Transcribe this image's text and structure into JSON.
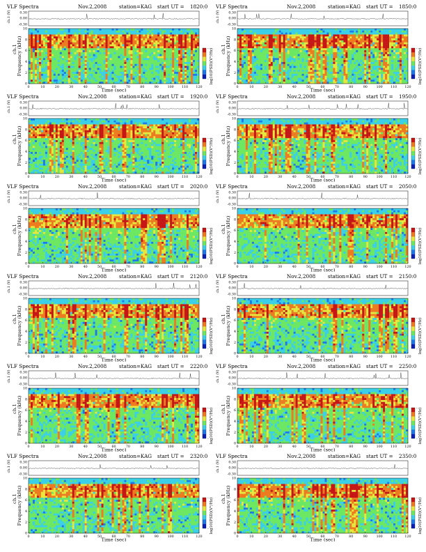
{
  "figure": {
    "header_title": "VLF Spectra",
    "header_date": "Nov.2,2008",
    "header_station": "station=KAG",
    "header_start_prefix": "start  UT  =",
    "time_axis_label": "Time  (sec)",
    "freq_axis_label": "Frequency  (kHz)",
    "channel_label": "ch.1",
    "waveform_axis_label": "ch.1 (V)",
    "colorbar_label": "log10(PSD)(V²/Hz)"
  },
  "chart_data": [
    {
      "type": "heatmap",
      "start_ut": "1820:0",
      "x": {
        "label": "Time (sec)",
        "range": [
          0,
          120
        ],
        "ticks": [
          0,
          10,
          20,
          30,
          40,
          50,
          60,
          70,
          80,
          90,
          100,
          110,
          120
        ]
      },
      "y": {
        "label": "Frequency (kHz)",
        "range": [
          0,
          10
        ],
        "ticks": [
          0,
          2,
          4,
          6,
          8,
          10
        ]
      },
      "waveform": {
        "label": "ch.1 (V)",
        "ticks": [
          "0.30",
          "0.00",
          "-0.30"
        ]
      },
      "colorbar": {
        "label": "log10(PSD)(V²/Hz)",
        "tick_top": "-",
        "tick_bottom": "-"
      }
    },
    {
      "type": "heatmap",
      "start_ut": "1850:0",
      "x": {
        "label": "Time (sec)",
        "range": [
          0,
          120
        ],
        "ticks": [
          0,
          10,
          20,
          30,
          40,
          50,
          60,
          70,
          80,
          90,
          100,
          110,
          120
        ]
      },
      "y": {
        "label": "Frequency (kHz)",
        "range": [
          0,
          10
        ],
        "ticks": [
          0,
          2,
          4,
          6,
          8,
          10
        ]
      },
      "waveform": {
        "label": "ch.1 (V)",
        "ticks": [
          "0.30",
          "0.00",
          "-0.30"
        ]
      },
      "colorbar": {
        "label": "log10(PSD)(V²/Hz)",
        "tick_top": "-",
        "tick_bottom": "-"
      }
    },
    {
      "type": "heatmap",
      "start_ut": "1920:0",
      "x": {
        "label": "Time (sec)",
        "range": [
          0,
          120
        ],
        "ticks": [
          0,
          10,
          20,
          30,
          40,
          50,
          60,
          70,
          80,
          90,
          100,
          110,
          120
        ]
      },
      "y": {
        "label": "Frequency (kHz)",
        "range": [
          0,
          10
        ],
        "ticks": [
          0,
          2,
          4,
          6,
          8,
          10
        ]
      },
      "waveform": {
        "label": "ch.1 (V)",
        "ticks": [
          "0.30",
          "0.00",
          "-0.30"
        ]
      },
      "colorbar": {
        "label": "log10(PSD)(V²/Hz)",
        "tick_top": "-",
        "tick_bottom": "-"
      }
    },
    {
      "type": "heatmap",
      "start_ut": "1950:0",
      "x": {
        "label": "Time (sec)",
        "range": [
          0,
          120
        ],
        "ticks": [
          0,
          10,
          20,
          30,
          40,
          50,
          60,
          70,
          80,
          90,
          100,
          110,
          120
        ]
      },
      "y": {
        "label": "Frequency (kHz)",
        "range": [
          0,
          10
        ],
        "ticks": [
          0,
          2,
          4,
          6,
          8,
          10
        ]
      },
      "waveform": {
        "label": "ch.1 (V)",
        "ticks": [
          "0.30",
          "0.00",
          "-0.30"
        ]
      },
      "colorbar": {
        "label": "log10(PSD)(V²/Hz)",
        "tick_top": "-",
        "tick_bottom": "-"
      }
    },
    {
      "type": "heatmap",
      "start_ut": "2020:0",
      "x": {
        "label": "Time (sec)",
        "range": [
          0,
          120
        ],
        "ticks": [
          0,
          10,
          20,
          30,
          40,
          50,
          60,
          70,
          80,
          90,
          100,
          110,
          120
        ]
      },
      "y": {
        "label": "Frequency (kHz)",
        "range": [
          0,
          10
        ],
        "ticks": [
          0,
          2,
          4,
          6,
          8,
          10
        ]
      },
      "waveform": {
        "label": "ch.1 (V)",
        "ticks": [
          "0.30",
          "0.00",
          "-0.30"
        ]
      },
      "colorbar": {
        "label": "log10(PSD)(V²/Hz)",
        "tick_top": "-",
        "tick_bottom": "-"
      }
    },
    {
      "type": "heatmap",
      "start_ut": "2050:0",
      "x": {
        "label": "Time (sec)",
        "range": [
          0,
          120
        ],
        "ticks": [
          0,
          10,
          20,
          30,
          40,
          50,
          60,
          70,
          80,
          90,
          100,
          110,
          120
        ]
      },
      "y": {
        "label": "Frequency (kHz)",
        "range": [
          0,
          10
        ],
        "ticks": [
          0,
          2,
          4,
          6,
          8,
          10
        ]
      },
      "waveform": {
        "label": "ch.1 (V)",
        "ticks": [
          "0.30",
          "0.00",
          "-0.30"
        ]
      },
      "colorbar": {
        "label": "log10(PSD)(V²/Hz)",
        "tick_top": "-",
        "tick_bottom": "-"
      }
    },
    {
      "type": "heatmap",
      "start_ut": "2120:0",
      "x": {
        "label": "Time (sec)",
        "range": [
          0,
          120
        ],
        "ticks": [
          0,
          10,
          20,
          30,
          40,
          50,
          60,
          70,
          80,
          90,
          100,
          110,
          120
        ]
      },
      "y": {
        "label": "Frequency (kHz)",
        "range": [
          0,
          10
        ],
        "ticks": [
          0,
          2,
          4,
          6,
          8,
          10
        ]
      },
      "waveform": {
        "label": "ch.1 (V)",
        "ticks": [
          "0.30",
          "0.00",
          "-0.30"
        ]
      },
      "colorbar": {
        "label": "log10(PSD)(V²/Hz)",
        "tick_top": "-",
        "tick_bottom": "-"
      }
    },
    {
      "type": "heatmap",
      "start_ut": "2150:0",
      "x": {
        "label": "Time (sec)",
        "range": [
          0,
          120
        ],
        "ticks": [
          0,
          10,
          20,
          30,
          40,
          50,
          60,
          70,
          80,
          90,
          100,
          110,
          120
        ]
      },
      "y": {
        "label": "Frequency (kHz)",
        "range": [
          0,
          10
        ],
        "ticks": [
          0,
          2,
          4,
          6,
          8,
          10
        ]
      },
      "waveform": {
        "label": "ch.1 (V)",
        "ticks": [
          "0.30",
          "0.00",
          "-0.30"
        ]
      },
      "colorbar": {
        "label": "log10(PSD)(V²/Hz)",
        "tick_top": "-",
        "tick_bottom": "-"
      }
    },
    {
      "type": "heatmap",
      "start_ut": "2220:0",
      "x": {
        "label": "Time (sec)",
        "range": [
          0,
          120
        ],
        "ticks": [
          0,
          10,
          20,
          30,
          40,
          50,
          60,
          70,
          80,
          90,
          100,
          110,
          120
        ]
      },
      "y": {
        "label": "Frequency (kHz)",
        "range": [
          0,
          10
        ],
        "ticks": [
          0,
          2,
          4,
          6,
          8,
          10
        ]
      },
      "waveform": {
        "label": "ch.1 (V)",
        "ticks": [
          "0.30",
          "0.00",
          "-0.30"
        ]
      },
      "colorbar": {
        "label": "log10(PSD)(V²/Hz)",
        "tick_top": "-",
        "tick_bottom": "-"
      }
    },
    {
      "type": "heatmap",
      "start_ut": "2250:0",
      "x": {
        "label": "Time (sec)",
        "range": [
          0,
          120
        ],
        "ticks": [
          0,
          10,
          20,
          30,
          40,
          50,
          60,
          70,
          80,
          90,
          100,
          110,
          120
        ]
      },
      "y": {
        "label": "Frequency (kHz)",
        "range": [
          0,
          10
        ],
        "ticks": [
          0,
          2,
          4,
          6,
          8,
          10
        ]
      },
      "waveform": {
        "label": "ch.1 (V)",
        "ticks": [
          "0.30",
          "0.00",
          "-0.30"
        ]
      },
      "colorbar": {
        "label": "log10(PSD)(V²/Hz)",
        "tick_top": "-",
        "tick_bottom": "-"
      }
    },
    {
      "type": "heatmap",
      "start_ut": "2320:0",
      "x": {
        "label": "Time (sec)",
        "range": [
          0,
          120
        ],
        "ticks": [
          0,
          10,
          20,
          30,
          40,
          50,
          60,
          70,
          80,
          90,
          100,
          110,
          120
        ]
      },
      "y": {
        "label": "Frequency (kHz)",
        "range": [
          0,
          10
        ],
        "ticks": [
          0,
          2,
          4,
          6,
          8,
          10
        ]
      },
      "waveform": {
        "label": "ch.1 (V)",
        "ticks": [
          "0.30",
          "0.00",
          "-0.30"
        ]
      },
      "colorbar": {
        "label": "log10(PSD)(V²/Hz)",
        "tick_top": "-",
        "tick_bottom": "-"
      }
    },
    {
      "type": "heatmap",
      "start_ut": "2350:0",
      "x": {
        "label": "Time (sec)",
        "range": [
          0,
          120
        ],
        "ticks": [
          0,
          10,
          20,
          30,
          40,
          50,
          60,
          70,
          80,
          90,
          100,
          110,
          120
        ]
      },
      "y": {
        "label": "Frequency (kHz)",
        "range": [
          0,
          10
        ],
        "ticks": [
          0,
          2,
          4,
          6,
          8,
          10
        ]
      },
      "waveform": {
        "label": "ch.1 (V)",
        "ticks": [
          "0.30",
          "0.00",
          "-0.30"
        ]
      },
      "colorbar": {
        "label": "log10(PSD)(V²/Hz)",
        "tick_top": "-",
        "tick_bottom": "-"
      }
    }
  ]
}
